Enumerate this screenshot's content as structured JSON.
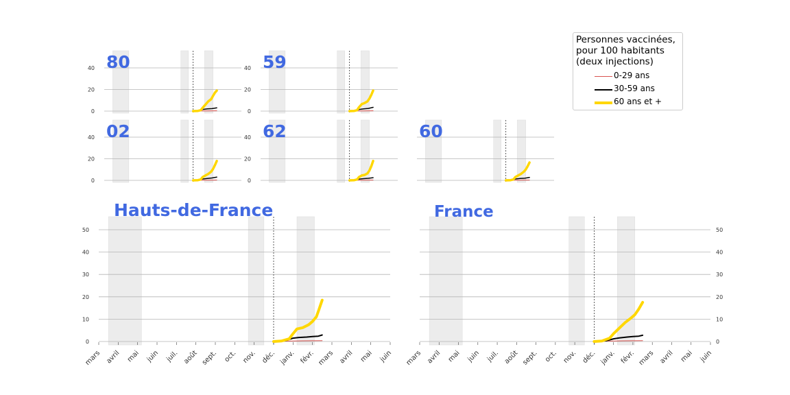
{
  "chart_data": {
    "type": "line",
    "months": [
      "mars",
      "avril",
      "mai",
      "juin",
      "juil.",
      "août",
      "sept.",
      "oct.",
      "nov.",
      "déc.",
      "janv.",
      "févr.",
      "mars",
      "avril",
      "mai",
      "juin"
    ],
    "legend": {
      "title_lines": [
        "Personnes vaccinées,",
        "pour 100 habitants",
        "(deux injections)"
      ],
      "placement": "top-right"
    },
    "series": [
      {
        "name": "0-29 ans",
        "color": "#d9534f",
        "width": 1
      },
      {
        "name": "30-59 ans",
        "color": "#000000",
        "width": 2
      },
      {
        "name": "60 ans et +",
        "color": "#ffd700",
        "width": 4
      }
    ],
    "grid": true,
    "shaded_periods": [
      [
        0.5,
        2.2
      ],
      [
        7.7,
        8.5
      ],
      [
        10.2,
        11.1
      ]
    ],
    "vline_month": 9.0,
    "small_yticks": [
      "0",
      "20",
      "40"
    ],
    "large_yticks": [
      "0",
      "10",
      "20",
      "30",
      "40",
      "50"
    ],
    "panels": [
      {
        "label": "80",
        "kind": "small",
        "ymax": 60,
        "s0": [
          [
            9.0,
            0.1
          ],
          [
            10.5,
            0.2
          ],
          [
            11.5,
            0.3
          ]
        ],
        "s1": [
          [
            9.0,
            0.0
          ],
          [
            9.7,
            0.3
          ],
          [
            10.0,
            1.5
          ],
          [
            10.5,
            2.0
          ],
          [
            11.0,
            2.3
          ],
          [
            11.5,
            3.0
          ]
        ],
        "s2": [
          [
            9.0,
            0.0
          ],
          [
            9.5,
            0.2
          ],
          [
            9.8,
            0.8
          ],
          [
            10.0,
            3.0
          ],
          [
            10.3,
            6.0
          ],
          [
            10.6,
            9.0
          ],
          [
            10.9,
            11.0
          ],
          [
            11.1,
            14.0
          ],
          [
            11.3,
            17.0
          ],
          [
            11.5,
            19.0
          ]
        ]
      },
      {
        "label": "59",
        "kind": "small",
        "ymax": 60,
        "s0": [
          [
            9.0,
            0.1
          ],
          [
            10.5,
            0.2
          ],
          [
            11.5,
            0.3
          ]
        ],
        "s1": [
          [
            9.0,
            0.0
          ],
          [
            9.7,
            0.3
          ],
          [
            10.0,
            1.5
          ],
          [
            10.5,
            2.0
          ],
          [
            11.0,
            2.5
          ],
          [
            11.5,
            3.5
          ]
        ],
        "s2": [
          [
            9.0,
            0.0
          ],
          [
            9.5,
            0.2
          ],
          [
            9.8,
            0.8
          ],
          [
            10.0,
            3.5
          ],
          [
            10.3,
            6.5
          ],
          [
            10.6,
            7.5
          ],
          [
            10.9,
            9.0
          ],
          [
            11.1,
            11.5
          ],
          [
            11.3,
            15.0
          ],
          [
            11.5,
            19.0
          ]
        ]
      },
      {
        "label": "02",
        "kind": "small",
        "ymax": 60,
        "s0": [
          [
            9.0,
            0.1
          ],
          [
            10.5,
            0.2
          ],
          [
            11.5,
            0.3
          ]
        ],
        "s1": [
          [
            9.0,
            0.0
          ],
          [
            9.7,
            0.3
          ],
          [
            10.0,
            1.3
          ],
          [
            10.5,
            1.8
          ],
          [
            11.0,
            2.2
          ],
          [
            11.5,
            3.0
          ]
        ],
        "s2": [
          [
            9.0,
            0.0
          ],
          [
            9.5,
            0.2
          ],
          [
            9.8,
            0.8
          ],
          [
            10.0,
            3.0
          ],
          [
            10.3,
            4.5
          ],
          [
            10.6,
            6.0
          ],
          [
            10.9,
            8.0
          ],
          [
            11.1,
            10.5
          ],
          [
            11.3,
            14.0
          ],
          [
            11.5,
            18.0
          ]
        ]
      },
      {
        "label": "62",
        "kind": "small",
        "ymax": 60,
        "s0": [
          [
            9.0,
            0.1
          ],
          [
            10.5,
            0.2
          ],
          [
            11.5,
            0.3
          ]
        ],
        "s1": [
          [
            9.0,
            0.0
          ],
          [
            9.7,
            0.3
          ],
          [
            10.0,
            1.2
          ],
          [
            10.5,
            1.6
          ],
          [
            11.0,
            1.9
          ],
          [
            11.5,
            2.5
          ]
        ],
        "s2": [
          [
            9.0,
            0.0
          ],
          [
            9.5,
            0.2
          ],
          [
            9.8,
            0.8
          ],
          [
            10.0,
            3.0
          ],
          [
            10.3,
            4.5
          ],
          [
            10.6,
            5.0
          ],
          [
            10.9,
            6.5
          ],
          [
            11.1,
            9.0
          ],
          [
            11.3,
            13.0
          ],
          [
            11.5,
            18.0
          ]
        ]
      },
      {
        "label": "60",
        "kind": "small",
        "ymax": 60,
        "s0": [
          [
            9.0,
            0.1
          ],
          [
            10.5,
            0.2
          ],
          [
            11.5,
            0.3
          ]
        ],
        "s1": [
          [
            9.0,
            0.0
          ],
          [
            9.7,
            0.3
          ],
          [
            10.0,
            1.3
          ],
          [
            10.5,
            1.7
          ],
          [
            11.0,
            2.0
          ],
          [
            11.5,
            2.7
          ]
        ],
        "s2": [
          [
            9.0,
            0.0
          ],
          [
            9.5,
            0.2
          ],
          [
            9.8,
            0.8
          ],
          [
            10.0,
            3.0
          ],
          [
            10.3,
            4.5
          ],
          [
            10.6,
            6.0
          ],
          [
            10.9,
            8.0
          ],
          [
            11.1,
            10.0
          ],
          [
            11.3,
            13.0
          ],
          [
            11.5,
            16.5
          ]
        ]
      },
      {
        "label": "Hauts-de-France",
        "kind": "large",
        "ymax": 56,
        "s0": [
          [
            9.0,
            0.1
          ],
          [
            10.5,
            0.3
          ],
          [
            11.5,
            0.4
          ]
        ],
        "s1": [
          [
            9.0,
            0.0
          ],
          [
            9.6,
            0.3
          ],
          [
            10.0,
            1.5
          ],
          [
            10.3,
            1.8
          ],
          [
            10.7,
            2.0
          ],
          [
            11.0,
            2.2
          ],
          [
            11.3,
            2.4
          ],
          [
            11.5,
            2.9
          ]
        ],
        "s2": [
          [
            9.0,
            0.0
          ],
          [
            9.4,
            0.2
          ],
          [
            9.8,
            1.2
          ],
          [
            10.0,
            3.5
          ],
          [
            10.2,
            5.6
          ],
          [
            10.5,
            6.2
          ],
          [
            10.8,
            7.5
          ],
          [
            11.0,
            9.0
          ],
          [
            11.2,
            11.0
          ],
          [
            11.3,
            13.5
          ],
          [
            11.5,
            18.5
          ]
        ]
      },
      {
        "label": "France",
        "kind": "large",
        "ymax": 56,
        "s0": [
          [
            9.0,
            0.1
          ],
          [
            10.5,
            0.3
          ],
          [
            11.5,
            0.4
          ]
        ],
        "s1": [
          [
            9.0,
            0.0
          ],
          [
            9.6,
            0.3
          ],
          [
            10.0,
            1.2
          ],
          [
            10.3,
            1.6
          ],
          [
            10.7,
            2.0
          ],
          [
            11.0,
            2.2
          ],
          [
            11.3,
            2.4
          ],
          [
            11.5,
            2.8
          ]
        ],
        "s2": [
          [
            9.0,
            0.0
          ],
          [
            9.4,
            0.2
          ],
          [
            9.8,
            1.5
          ],
          [
            10.0,
            3.5
          ],
          [
            10.3,
            6.0
          ],
          [
            10.6,
            8.5
          ],
          [
            10.9,
            10.5
          ],
          [
            11.1,
            12.0
          ],
          [
            11.3,
            14.5
          ],
          [
            11.5,
            17.5
          ]
        ]
      }
    ]
  }
}
